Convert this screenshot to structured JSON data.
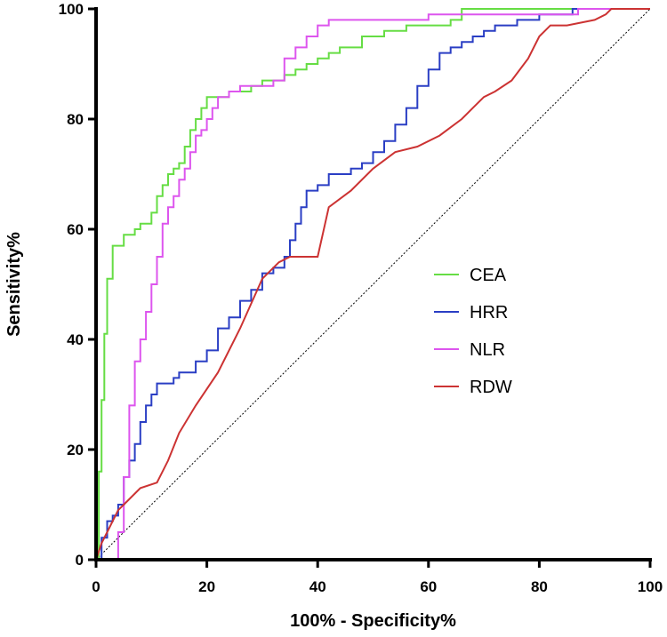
{
  "chart_data": {
    "type": "line",
    "title": "",
    "xlabel": "100% - Specificity%",
    "ylabel": "Sensitivity%",
    "xlim": [
      0,
      100
    ],
    "ylim": [
      0,
      100
    ],
    "xticks": [
      0,
      20,
      40,
      60,
      80,
      100
    ],
    "yticks": [
      0,
      20,
      40,
      60,
      80,
      100
    ],
    "grid": false,
    "legend_position": "center-right",
    "reference_line": {
      "x": [
        0,
        100
      ],
      "y": [
        0,
        100
      ],
      "style": "dotted"
    },
    "series": [
      {
        "name": "CEA",
        "color": "#66dd44",
        "step": true,
        "x": [
          0,
          0.5,
          1,
          1.5,
          2,
          3,
          5,
          7,
          8,
          10,
          11,
          12,
          13,
          14,
          15,
          16,
          17,
          18,
          19,
          20,
          22,
          24,
          26,
          28,
          30,
          32,
          34,
          36,
          38,
          40,
          42,
          44,
          48,
          52,
          56,
          60,
          64,
          66,
          70,
          80,
          90,
          100
        ],
        "y": [
          0,
          16,
          29,
          41,
          51,
          57,
          59,
          60,
          61,
          63,
          66,
          68,
          70,
          71,
          72,
          75,
          78,
          80,
          82,
          84,
          84,
          85,
          85,
          86,
          87,
          87,
          88,
          89,
          90,
          91,
          92,
          93,
          95,
          96,
          97,
          97,
          98,
          100,
          100,
          100,
          100,
          100
        ]
      },
      {
        "name": "HRR",
        "color": "#2a3ec4",
        "step": true,
        "x": [
          0,
          1,
          2,
          3,
          4,
          5,
          6,
          7,
          8,
          9,
          10,
          11,
          14,
          15,
          18,
          20,
          22,
          24,
          26,
          28,
          30,
          32,
          33,
          34,
          35,
          36,
          37,
          38,
          40,
          42,
          44,
          46,
          48,
          50,
          52,
          54,
          56,
          58,
          60,
          62,
          64,
          66,
          68,
          70,
          72,
          74,
          76,
          78,
          80,
          82,
          84,
          86,
          88,
          90,
          92,
          100
        ],
        "y": [
          0,
          4,
          7,
          8,
          10,
          15,
          18,
          21,
          25,
          28,
          30,
          32,
          33,
          34,
          36,
          38,
          42,
          44,
          47,
          49,
          52,
          53,
          53,
          55,
          58,
          61,
          64,
          67,
          68,
          70,
          70,
          71,
          72,
          74,
          76,
          79,
          82,
          86,
          89,
          92,
          93,
          94,
          95,
          96,
          97,
          97,
          98,
          98,
          99,
          99,
          99,
          100,
          100,
          100,
          100,
          100
        ]
      },
      {
        "name": "NLR",
        "color": "#dd55ee",
        "step": true,
        "x": [
          0,
          3.5,
          4,
          5,
          6,
          7,
          8,
          9,
          10,
          11,
          12,
          13,
          14,
          15,
          16,
          17,
          18,
          19,
          20,
          21,
          22,
          24,
          26,
          28,
          30,
          32,
          34,
          36,
          38,
          40,
          42,
          44,
          48,
          52,
          56,
          60,
          64,
          70,
          80,
          86,
          87,
          100
        ],
        "y": [
          0,
          0,
          5,
          15,
          28,
          36,
          40,
          45,
          50,
          55,
          61,
          64,
          66,
          69,
          71,
          74,
          77,
          78,
          80,
          82,
          84,
          85,
          86,
          86,
          86,
          87,
          91,
          93,
          95,
          97,
          98,
          98,
          98,
          98,
          98,
          99,
          99,
          99,
          99,
          99,
          100,
          100
        ]
      },
      {
        "name": "RDW",
        "color": "#cc3333",
        "step": false,
        "x": [
          0,
          1,
          2,
          3,
          4,
          5,
          8,
          11,
          13,
          15,
          18,
          22,
          26,
          30,
          33,
          35,
          38,
          40,
          42,
          46,
          50,
          54,
          58,
          62,
          66,
          68,
          70,
          72,
          75,
          78,
          80,
          82,
          85,
          90,
          92,
          93,
          100
        ],
        "y": [
          0,
          3,
          5,
          7,
          9,
          10,
          13,
          14,
          18,
          23,
          28,
          34,
          42,
          51,
          54,
          55,
          55,
          55,
          64,
          67,
          71,
          74,
          75,
          77,
          80,
          82,
          84,
          85,
          87,
          91,
          95,
          97,
          97,
          98,
          99,
          100,
          100
        ]
      }
    ]
  }
}
